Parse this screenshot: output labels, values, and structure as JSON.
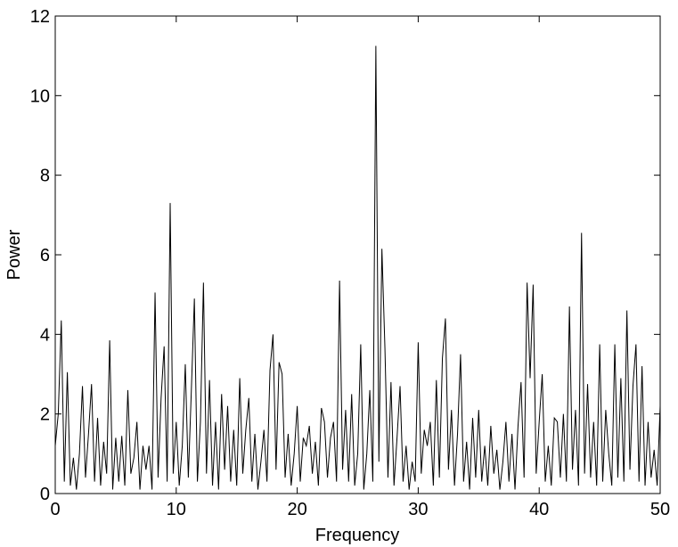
{
  "chart_data": {
    "type": "line",
    "x_label": "Frequency",
    "y_label": "Power",
    "xlim": [
      0,
      50
    ],
    "xticks": [
      0,
      10,
      20,
      30,
      40,
      50
    ],
    "ylim": [
      0,
      12
    ],
    "yticks": [
      0,
      2,
      4,
      6,
      8,
      10,
      12
    ],
    "color": "#000000",
    "x": [
      0,
      0.25,
      0.5,
      0.75,
      1,
      1.25,
      1.5,
      1.75,
      2,
      2.25,
      2.5,
      2.75,
      3,
      3.25,
      3.5,
      3.75,
      4,
      4.25,
      4.5,
      4.75,
      5,
      5.25,
      5.5,
      5.75,
      6,
      6.25,
      6.5,
      6.75,
      7,
      7.25,
      7.5,
      7.75,
      8,
      8.25,
      8.5,
      8.75,
      9,
      9.25,
      9.5,
      9.75,
      10,
      10.25,
      10.5,
      10.75,
      11,
      11.25,
      11.5,
      11.75,
      12,
      12.25,
      12.5,
      12.75,
      13,
      13.25,
      13.5,
      13.75,
      14,
      14.25,
      14.5,
      14.75,
      15,
      15.25,
      15.5,
      15.75,
      16,
      16.25,
      16.5,
      16.75,
      17,
      17.25,
      17.5,
      17.75,
      18,
      18.25,
      18.5,
      18.75,
      19,
      19.25,
      19.5,
      19.75,
      20,
      20.25,
      20.5,
      20.75,
      21,
      21.25,
      21.5,
      21.75,
      22,
      22.25,
      22.5,
      22.75,
      23,
      23.25,
      23.5,
      23.75,
      24,
      24.25,
      24.5,
      24.75,
      25,
      25.25,
      25.5,
      25.75,
      26,
      26.25,
      26.5,
      26.75,
      27,
      27.25,
      27.5,
      27.75,
      28,
      28.25,
      28.5,
      28.75,
      29,
      29.25,
      29.5,
      29.75,
      30,
      30.25,
      30.5,
      30.75,
      31,
      31.25,
      31.5,
      31.75,
      32,
      32.25,
      32.5,
      32.75,
      33,
      33.25,
      33.5,
      33.75,
      34,
      34.25,
      34.5,
      34.75,
      35,
      35.25,
      35.5,
      35.75,
      36,
      36.25,
      36.5,
      36.75,
      37,
      37.25,
      37.5,
      37.75,
      38,
      38.25,
      38.5,
      38.75,
      39,
      39.25,
      39.5,
      39.75,
      40,
      40.25,
      40.5,
      40.75,
      41,
      41.25,
      41.5,
      41.75,
      42,
      42.25,
      42.5,
      42.75,
      43,
      43.25,
      43.5,
      43.75,
      44,
      44.25,
      44.5,
      44.75,
      45,
      45.25,
      45.5,
      45.75,
      46,
      46.25,
      46.5,
      46.75,
      47,
      47.25,
      47.5,
      47.75,
      48,
      48.25,
      48.5,
      48.75,
      49,
      49.25,
      49.5,
      49.75,
      50
    ],
    "values": [
      1.2,
      2.0,
      4.35,
      0.3,
      3.05,
      0.2,
      0.9,
      0.1,
      1.0,
      2.7,
      0.4,
      1.5,
      2.75,
      0.3,
      1.9,
      0.2,
      1.3,
      0.5,
      3.85,
      0.1,
      1.4,
      0.3,
      1.45,
      0.2,
      2.6,
      0.5,
      0.9,
      1.8,
      0.1,
      1.2,
      0.6,
      1.2,
      0.1,
      5.05,
      0.4,
      2.4,
      3.7,
      0.3,
      7.3,
      0.5,
      1.8,
      0.2,
      1.2,
      3.25,
      0.4,
      2.6,
      4.9,
      0.3,
      1.8,
      5.3,
      0.5,
      2.85,
      0.2,
      1.8,
      0.1,
      2.5,
      0.6,
      2.2,
      0.3,
      1.6,
      0.2,
      2.9,
      0.5,
      1.6,
      2.4,
      0.3,
      1.5,
      0.1,
      0.8,
      1.6,
      0.3,
      3.1,
      4.0,
      0.6,
      3.3,
      3.0,
      0.4,
      1.5,
      0.2,
      1.0,
      2.2,
      0.3,
      1.4,
      1.2,
      1.7,
      0.5,
      1.3,
      0.2,
      2.15,
      1.8,
      0.4,
      1.4,
      1.8,
      0.3,
      5.35,
      0.6,
      2.1,
      0.3,
      2.5,
      0.2,
      1.0,
      3.75,
      0.1,
      1.0,
      2.6,
      0.3,
      11.25,
      0.8,
      6.15,
      3.65,
      0.4,
      2.8,
      0.2,
      1.4,
      2.7,
      0.3,
      1.2,
      0.1,
      0.8,
      0.3,
      3.8,
      0.5,
      1.6,
      1.2,
      1.8,
      0.2,
      2.85,
      0.4,
      3.4,
      4.4,
      0.6,
      2.1,
      0.2,
      1.5,
      3.5,
      0.3,
      1.3,
      0.1,
      1.9,
      0.4,
      2.1,
      0.3,
      1.2,
      0.2,
      1.7,
      0.5,
      1.1,
      0.1,
      0.8,
      1.8,
      0.3,
      1.5,
      0.1,
      1.7,
      2.8,
      0.4,
      5.3,
      2.9,
      5.25,
      0.5,
      1.8,
      3.0,
      0.3,
      1.2,
      0.2,
      1.9,
      1.8,
      0.4,
      2.0,
      0.3,
      4.7,
      0.6,
      2.1,
      0.2,
      6.55,
      0.5,
      2.75,
      0.4,
      1.8,
      0.2,
      3.75,
      0.3,
      2.1,
      1.0,
      0.2,
      3.75,
      0.4,
      2.9,
      0.3,
      4.6,
      0.6,
      2.7,
      3.75,
      0.3,
      3.2,
      0.2,
      1.8,
      0.4,
      1.1,
      0.2,
      2.2
    ]
  }
}
